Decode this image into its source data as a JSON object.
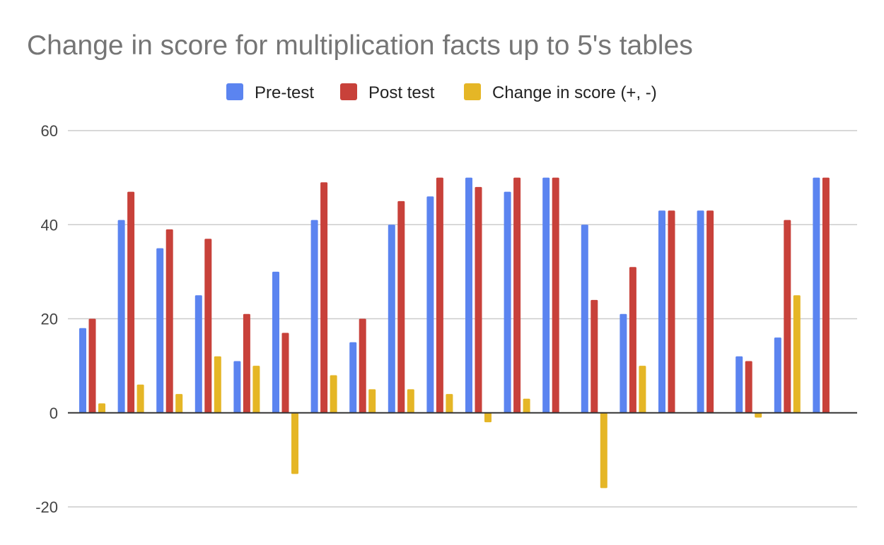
{
  "chart_data": {
    "type": "bar",
    "title": "Change in score for multiplication facts up to 5's tables",
    "xlabel": "",
    "ylabel": "",
    "ylim": [
      -20,
      60
    ],
    "yticks": [
      60,
      40,
      20,
      0,
      -20
    ],
    "grid": true,
    "legend_position": "top-center",
    "categories_count": 20,
    "series": [
      {
        "name": "Pre-test",
        "color": "#5B84F0",
        "values": [
          18,
          41,
          35,
          25,
          11,
          30,
          41,
          15,
          40,
          46,
          50,
          47,
          50,
          40,
          21,
          43,
          43,
          12,
          16,
          50
        ]
      },
      {
        "name": "Post test",
        "color": "#C8413A",
        "values": [
          20,
          47,
          39,
          37,
          21,
          17,
          49,
          20,
          45,
          50,
          48,
          50,
          50,
          24,
          31,
          43,
          43,
          11,
          41,
          50
        ]
      },
      {
        "name": "Change in score (+, -)",
        "color": "#E5B626",
        "values": [
          2,
          6,
          4,
          12,
          10,
          -13,
          8,
          5,
          5,
          4,
          -2,
          3,
          0,
          -16,
          10,
          0,
          0,
          -1,
          25,
          0
        ]
      }
    ]
  }
}
